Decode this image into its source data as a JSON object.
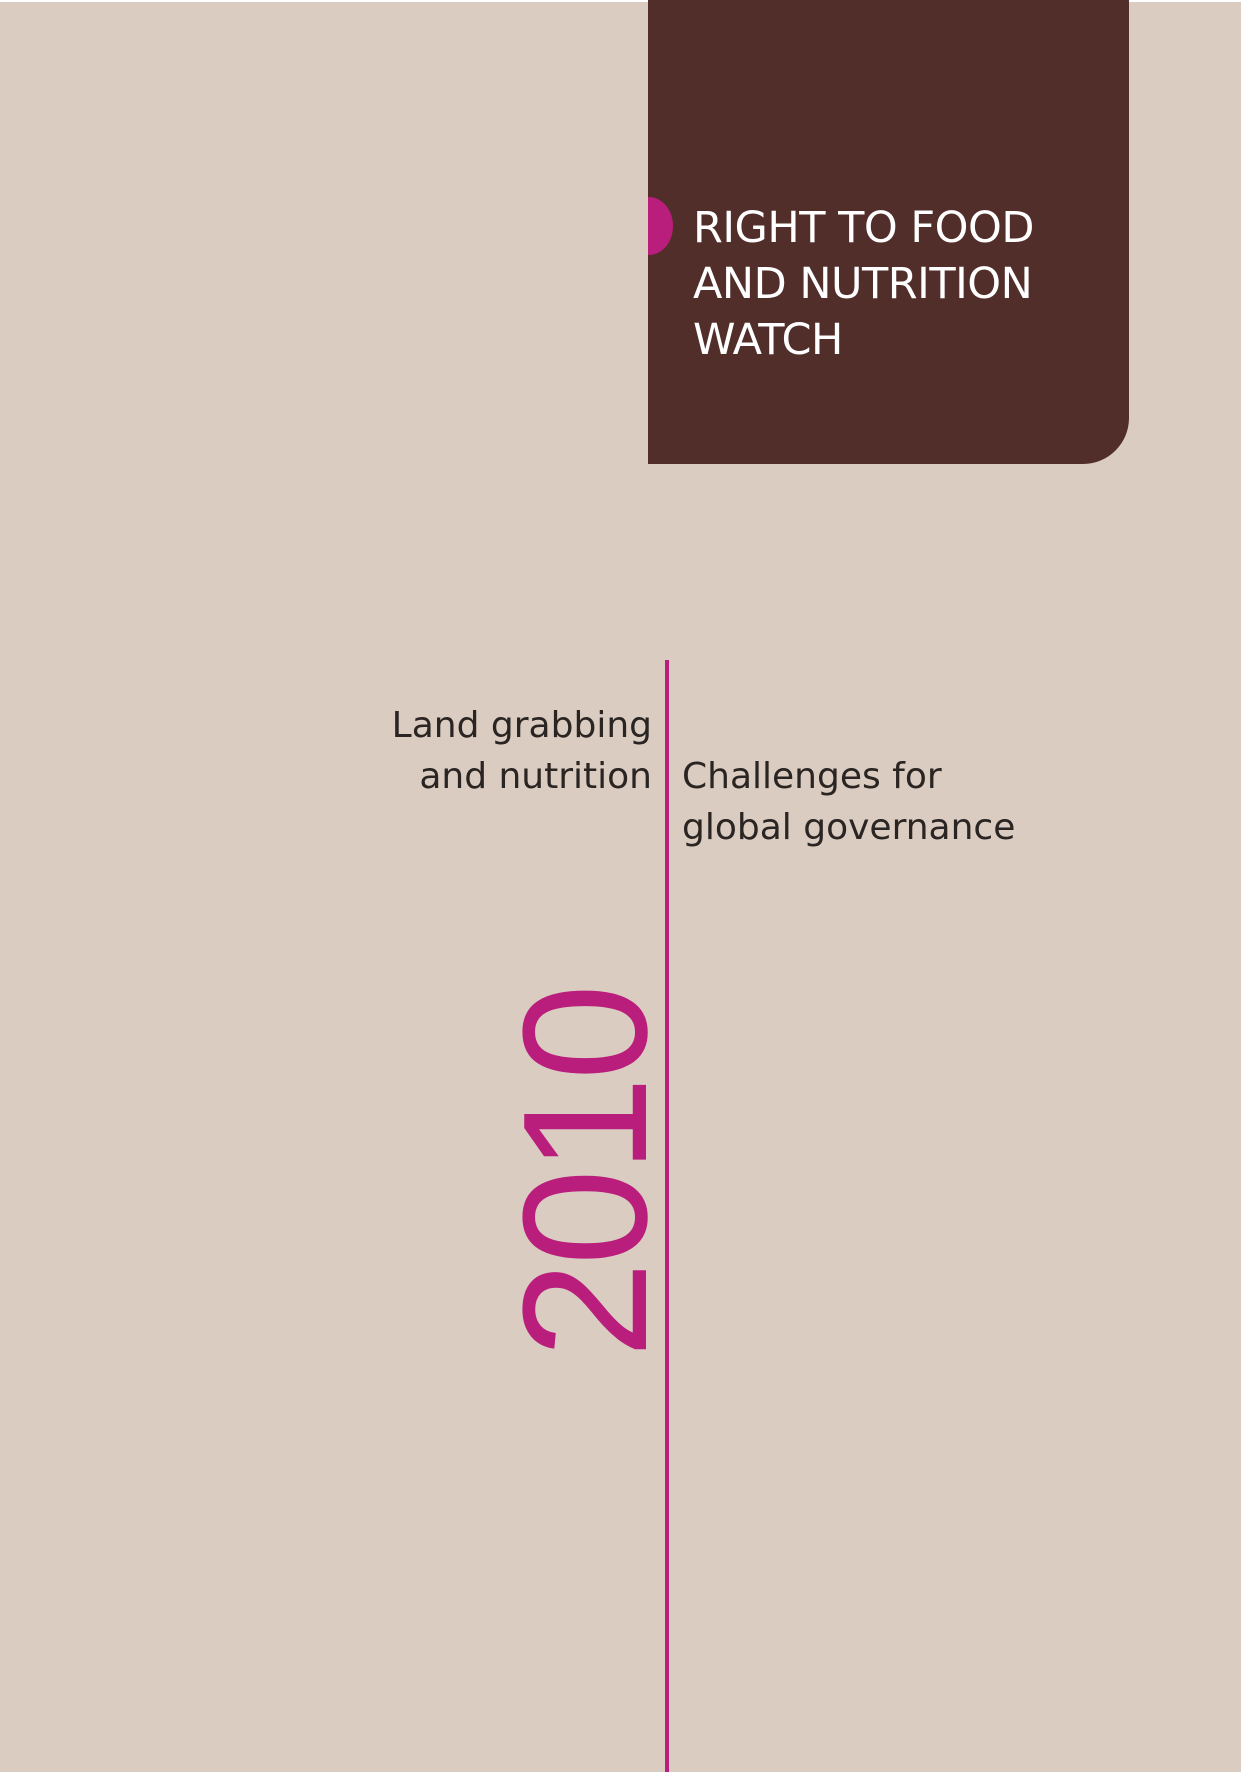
{
  "banner": {
    "title_lines": [
      "RIGHT TO FOOD",
      "AND NUTRITION",
      "WATCH"
    ]
  },
  "title": {
    "left_lines": [
      "Land grabbing",
      "and nutrition"
    ],
    "right_lines": [
      "Challenges for",
      "global governance"
    ]
  },
  "year": "2010",
  "colors": {
    "background": "#dbccc1",
    "banner": "#512e29",
    "accent": "#ba1e7c",
    "text": "#2a2522"
  }
}
